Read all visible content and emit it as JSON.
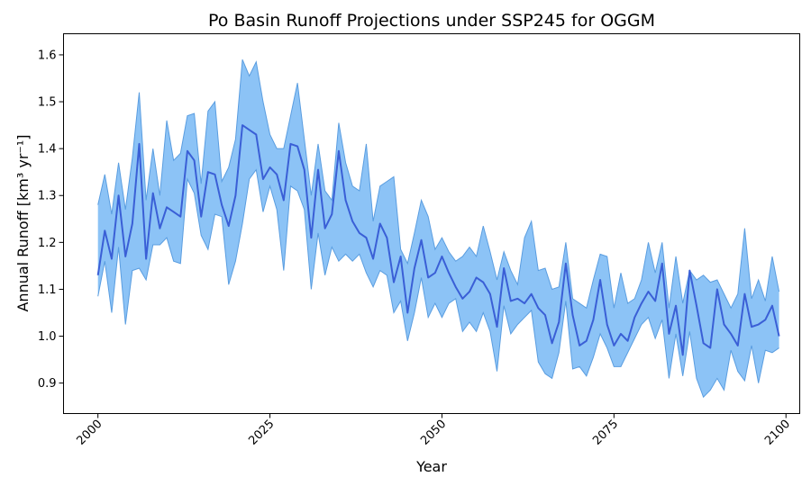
{
  "chart_data": {
    "type": "area",
    "title": "Po Basin Runoff Projections under SSP245 for OGGM",
    "xlabel": "Year",
    "ylabel": "Annual Runoff [km³ yr⁻¹]",
    "xlim": [
      1995,
      2102
    ],
    "ylim": [
      0.835,
      1.645
    ],
    "xticks": [
      2000,
      2025,
      2050,
      2075,
      2100
    ],
    "yticks": [
      0.9,
      1.0,
      1.1,
      1.2,
      1.3,
      1.4,
      1.5,
      1.6
    ],
    "grid": false,
    "legend": "none",
    "colors": {
      "band": "#8cc3f6",
      "band_edge": "#5a9de0",
      "line": "#3a5fd6"
    },
    "x": [
      2000,
      2001,
      2002,
      2003,
      2004,
      2005,
      2006,
      2007,
      2008,
      2009,
      2010,
      2011,
      2012,
      2013,
      2014,
      2015,
      2016,
      2017,
      2018,
      2019,
      2020,
      2021,
      2022,
      2023,
      2024,
      2025,
      2026,
      2027,
      2028,
      2029,
      2030,
      2031,
      2032,
      2033,
      2034,
      2035,
      2036,
      2037,
      2038,
      2039,
      2040,
      2041,
      2042,
      2043,
      2044,
      2045,
      2046,
      2047,
      2048,
      2049,
      2050,
      2051,
      2052,
      2053,
      2054,
      2055,
      2056,
      2057,
      2058,
      2059,
      2060,
      2061,
      2062,
      2063,
      2064,
      2065,
      2066,
      2067,
      2068,
      2069,
      2070,
      2071,
      2072,
      2073,
      2074,
      2075,
      2076,
      2077,
      2078,
      2079,
      2080,
      2081,
      2082,
      2083,
      2084,
      2085,
      2086,
      2087,
      2088,
      2089,
      2090,
      2091,
      2092,
      2093,
      2094,
      2095,
      2096,
      2097,
      2098,
      2099
    ],
    "series": [
      {
        "role": "median",
        "values": [
          1.13,
          1.225,
          1.165,
          1.3,
          1.17,
          1.24,
          1.41,
          1.165,
          1.305,
          1.23,
          1.275,
          1.265,
          1.255,
          1.395,
          1.375,
          1.255,
          1.35,
          1.345,
          1.28,
          1.235,
          1.3,
          1.45,
          1.44,
          1.43,
          1.335,
          1.36,
          1.345,
          1.29,
          1.41,
          1.405,
          1.355,
          1.21,
          1.355,
          1.23,
          1.26,
          1.395,
          1.29,
          1.245,
          1.22,
          1.21,
          1.165,
          1.24,
          1.21,
          1.115,
          1.17,
          1.05,
          1.145,
          1.205,
          1.125,
          1.135,
          1.17,
          1.135,
          1.105,
          1.08,
          1.095,
          1.125,
          1.115,
          1.09,
          1.02,
          1.145,
          1.075,
          1.08,
          1.07,
          1.09,
          1.06,
          1.045,
          0.985,
          1.03,
          1.155,
          1.045,
          0.98,
          0.99,
          1.035,
          1.12,
          1.025,
          0.98,
          1.005,
          0.99,
          1.04,
          1.07,
          1.095,
          1.075,
          1.155,
          1.005,
          1.065,
          0.96,
          1.14,
          1.065,
          0.985,
          0.975,
          1.1,
          1.025,
          1.005,
          0.98,
          1.09,
          1.02,
          1.025,
          1.035,
          1.065,
          1.0
        ]
      },
      {
        "role": "upper",
        "values": [
          1.28,
          1.345,
          1.26,
          1.37,
          1.27,
          1.38,
          1.52,
          1.29,
          1.4,
          1.3,
          1.46,
          1.375,
          1.39,
          1.47,
          1.475,
          1.325,
          1.48,
          1.5,
          1.33,
          1.36,
          1.42,
          1.59,
          1.555,
          1.585,
          1.5,
          1.43,
          1.4,
          1.4,
          1.47,
          1.54,
          1.42,
          1.3,
          1.41,
          1.31,
          1.29,
          1.455,
          1.37,
          1.32,
          1.31,
          1.41,
          1.245,
          1.32,
          1.33,
          1.34,
          1.185,
          1.155,
          1.22,
          1.29,
          1.255,
          1.185,
          1.21,
          1.18,
          1.16,
          1.17,
          1.19,
          1.17,
          1.235,
          1.18,
          1.12,
          1.18,
          1.14,
          1.11,
          1.21,
          1.245,
          1.14,
          1.145,
          1.1,
          1.105,
          1.2,
          1.08,
          1.07,
          1.06,
          1.12,
          1.175,
          1.17,
          1.06,
          1.135,
          1.07,
          1.08,
          1.12,
          1.2,
          1.135,
          1.2,
          1.06,
          1.17,
          1.07,
          1.14,
          1.12,
          1.13,
          1.115,
          1.12,
          1.09,
          1.06,
          1.09,
          1.23,
          1.08,
          1.12,
          1.075,
          1.17,
          1.095
        ]
      },
      {
        "role": "lower",
        "values": [
          1.085,
          1.16,
          1.05,
          1.19,
          1.025,
          1.14,
          1.145,
          1.12,
          1.195,
          1.195,
          1.21,
          1.16,
          1.155,
          1.335,
          1.305,
          1.215,
          1.185,
          1.26,
          1.255,
          1.11,
          1.16,
          1.24,
          1.335,
          1.355,
          1.265,
          1.32,
          1.27,
          1.14,
          1.32,
          1.31,
          1.27,
          1.1,
          1.22,
          1.13,
          1.19,
          1.16,
          1.175,
          1.16,
          1.175,
          1.135,
          1.105,
          1.14,
          1.13,
          1.05,
          1.075,
          0.99,
          1.05,
          1.125,
          1.04,
          1.07,
          1.04,
          1.07,
          1.08,
          1.01,
          1.03,
          1.01,
          1.05,
          1.01,
          0.925,
          1.065,
          1.005,
          1.025,
          1.04,
          1.055,
          0.945,
          0.92,
          0.91,
          0.965,
          1.075,
          0.93,
          0.935,
          0.915,
          0.955,
          1.005,
          0.975,
          0.935,
          0.935,
          0.965,
          0.995,
          1.025,
          1.04,
          0.995,
          1.035,
          0.91,
          1.005,
          0.915,
          1.01,
          0.91,
          0.87,
          0.885,
          0.91,
          0.885,
          0.97,
          0.925,
          0.905,
          0.98,
          0.9,
          0.97,
          0.965,
          0.975
        ]
      }
    ]
  }
}
